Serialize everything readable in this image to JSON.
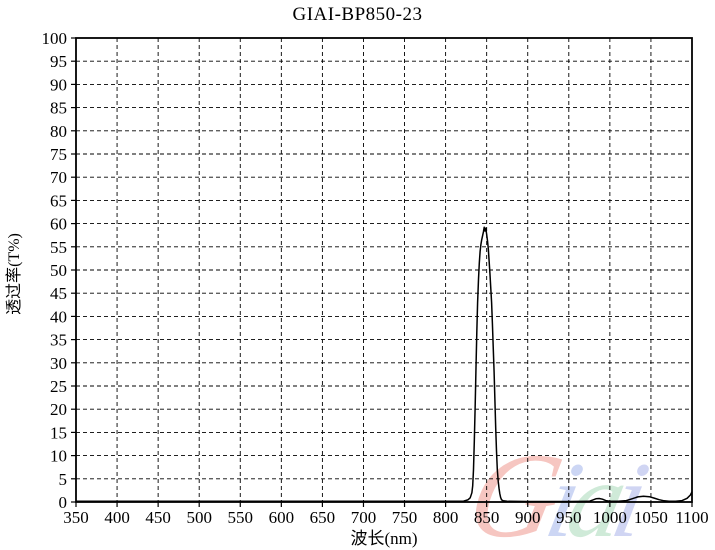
{
  "page": {
    "background": "#ffffff",
    "foreground": "#000000"
  },
  "chart_data": {
    "type": "line",
    "title": "GIAI-BP850-23",
    "xlabel": "波长(nm)",
    "ylabel": "透过率(T%)",
    "xlim": [
      350,
      1100
    ],
    "ylim": [
      0,
      100
    ],
    "xticks": [
      350,
      400,
      450,
      500,
      550,
      600,
      650,
      700,
      750,
      800,
      850,
      900,
      950,
      1000,
      1050,
      1100
    ],
    "yticks": [
      0,
      5,
      10,
      15,
      20,
      25,
      30,
      35,
      40,
      45,
      50,
      55,
      60,
      65,
      70,
      75,
      80,
      85,
      90,
      95,
      100
    ],
    "grid": true,
    "grid_style": "dashed",
    "line_color": "#000000",
    "legend": "none",
    "series": [
      {
        "name": "transmittance",
        "points": [
          [
            350,
            0.15
          ],
          [
            400,
            0.15
          ],
          [
            450,
            0.15
          ],
          [
            500,
            0.15
          ],
          [
            550,
            0.15
          ],
          [
            600,
            0.15
          ],
          [
            650,
            0.15
          ],
          [
            700,
            0.15
          ],
          [
            750,
            0.15
          ],
          [
            780,
            0.15
          ],
          [
            800,
            0.15
          ],
          [
            815,
            0.15
          ],
          [
            822,
            0.2
          ],
          [
            827,
            0.45
          ],
          [
            830,
            0.9
          ],
          [
            832,
            2
          ],
          [
            833,
            3.5
          ],
          [
            834,
            7
          ],
          [
            835,
            13
          ],
          [
            836,
            21
          ],
          [
            837,
            29
          ],
          [
            838,
            36.5
          ],
          [
            839,
            43
          ],
          [
            840,
            48
          ],
          [
            841,
            51.5
          ],
          [
            842,
            54
          ],
          [
            843,
            55.5
          ],
          [
            844,
            56.5
          ],
          [
            845,
            57.4
          ],
          [
            846,
            58.2
          ],
          [
            847,
            59.2
          ],
          [
            848,
            58.4
          ],
          [
            849,
            59
          ],
          [
            850,
            57.6
          ],
          [
            851,
            56.3
          ],
          [
            852,
            54.6
          ],
          [
            853,
            52
          ],
          [
            854,
            49
          ],
          [
            855,
            46
          ],
          [
            856,
            43
          ],
          [
            857,
            38.5
          ],
          [
            858,
            33.5
          ],
          [
            859,
            28
          ],
          [
            860,
            22
          ],
          [
            861,
            16
          ],
          [
            862,
            11
          ],
          [
            863,
            7
          ],
          [
            864,
            4.5
          ],
          [
            865,
            3
          ],
          [
            866,
            1.8
          ],
          [
            867,
            1
          ],
          [
            868,
            0.5
          ],
          [
            870,
            0.25
          ],
          [
            875,
            0.15
          ],
          [
            900,
            0.1
          ],
          [
            925,
            0.1
          ],
          [
            950,
            0.1
          ],
          [
            975,
            0.15
          ],
          [
            979,
            0.4
          ],
          [
            983,
            0.7
          ],
          [
            987,
            0.75
          ],
          [
            991,
            0.6
          ],
          [
            995,
            0.3
          ],
          [
            1000,
            0.15
          ],
          [
            1010,
            0.15
          ],
          [
            1020,
            0.3
          ],
          [
            1027,
            0.7
          ],
          [
            1034,
            1.1
          ],
          [
            1041,
            1.25
          ],
          [
            1048,
            1.15
          ],
          [
            1054,
            0.85
          ],
          [
            1060,
            0.5
          ],
          [
            1066,
            0.25
          ],
          [
            1072,
            0.15
          ],
          [
            1080,
            0.15
          ],
          [
            1088,
            0.3
          ],
          [
            1094,
            0.8
          ],
          [
            1098,
            1.5
          ],
          [
            1100,
            2.2
          ]
        ]
      }
    ],
    "peak_summary": {
      "center_nm": 848,
      "peak_transmittance_pct": 59
    }
  },
  "watermark": {
    "text": "Giai",
    "letters": [
      {
        "ch": "G",
        "color": "#f0998f"
      },
      {
        "ch": "i",
        "color": "#a3b5ec"
      },
      {
        "ch": "a",
        "color": "#a8d9b9"
      },
      {
        "ch": "i",
        "color": "#aab4ea"
      }
    ]
  }
}
